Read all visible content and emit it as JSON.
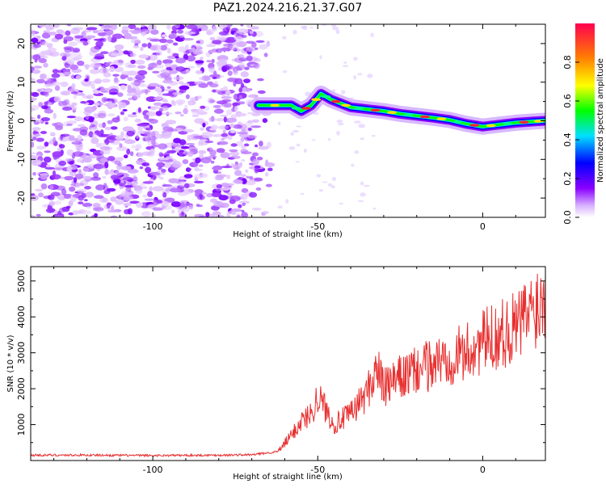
{
  "title": "PAZ1.2024.216.21.37.G07",
  "chart_data": [
    {
      "type": "heatmap",
      "xlabel": "Height of straight line (km)",
      "ylabel": "Frequency (Hz)",
      "xlim": [
        -137,
        19
      ],
      "ylim": [
        -25,
        25
      ],
      "xticks": [
        -100,
        -50,
        0
      ],
      "yticks": [
        -20,
        -10,
        0,
        10,
        20
      ],
      "colorbar": {
        "label": "Normalized spectral amplitude",
        "ticks": [
          0.0,
          0.2,
          0.4,
          0.6,
          0.8
        ],
        "range": [
          0,
          1
        ],
        "colormap": "rainbow"
      },
      "signal_ridge": {
        "height_km": [
          -68,
          -58,
          -55,
          -52,
          -49,
          -46,
          -43,
          -40,
          -35,
          -30,
          -25,
          -20,
          -15,
          -10,
          -5,
          0,
          5,
          10,
          15,
          19
        ],
        "frequency_hz": [
          4,
          4,
          2.5,
          4,
          7,
          5.5,
          4.5,
          3.5,
          3,
          2.5,
          1.8,
          1.3,
          0.8,
          0.2,
          -0.8,
          -1.5,
          -1,
          -0.5,
          -0.2,
          0
        ]
      },
      "noise_region_km": [
        -137,
        -62
      ]
    },
    {
      "type": "line",
      "xlabel": "Height of straight line (km)",
      "ylabel": "SNR (10 * v/v)",
      "xlim": [
        -137,
        19
      ],
      "ylim": [
        0,
        5400
      ],
      "xticks": [
        -100,
        -50,
        0
      ],
      "yticks": [
        1000,
        2000,
        3000,
        4000,
        5000
      ],
      "color": "#e83030",
      "series": [
        {
          "x": [
            -137,
            -120,
            -100,
            -80,
            -70,
            -62,
            -58,
            -55,
            -52,
            -50,
            -48,
            -45,
            -40,
            -35,
            -32,
            -30,
            -25,
            -20,
            -15,
            -10,
            -5,
            0,
            5,
            10,
            15,
            19
          ],
          "values": [
            150,
            150,
            140,
            150,
            160,
            250,
            700,
            1100,
            1300,
            1800,
            1500,
            1000,
            1300,
            1900,
            2600,
            2000,
            2300,
            2500,
            2700,
            2900,
            3000,
            3300,
            3500,
            3700,
            4200,
            4600
          ]
        }
      ]
    }
  ]
}
